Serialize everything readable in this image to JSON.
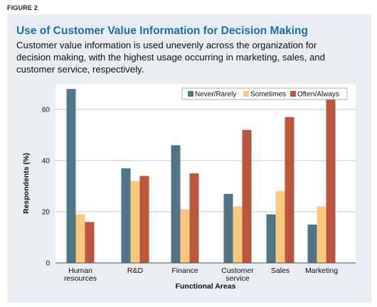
{
  "figure_label": "FIGURE 2",
  "title": "Use of Customer Value Information for Decision Making",
  "subtitle": "Customer value information is used unevenly across the organization for decision making, with the highest usage occurring in marketing, sales, and customer service, respectively.",
  "colors": {
    "panel_bg": "#e8edf2",
    "title": "#1f6fa6"
  },
  "chart_data": {
    "type": "bar",
    "categories": [
      [
        "Human",
        "resources"
      ],
      [
        "R&D"
      ],
      [
        "Finance"
      ],
      [
        "Customer",
        "service"
      ],
      [
        "Sales"
      ],
      [
        "Marketing"
      ]
    ],
    "series": [
      {
        "name": "Never/Rarely",
        "color": "#527586",
        "values": [
          68,
          37,
          46,
          27,
          19,
          15
        ]
      },
      {
        "name": "Sometimes",
        "color": "#fbc97e",
        "values": [
          19,
          32,
          21,
          22,
          28,
          22
        ]
      },
      {
        "name": "Often/Always",
        "color": "#bb553c",
        "values": [
          16,
          34,
          35,
          52,
          57,
          64
        ]
      }
    ],
    "xlabel": "Functional Areas",
    "ylabel": "Respondents (%)",
    "ylim": [
      0,
      70
    ],
    "yticks": [
      0,
      20,
      40,
      60
    ],
    "grid": true,
    "legend_position": "top-right"
  }
}
